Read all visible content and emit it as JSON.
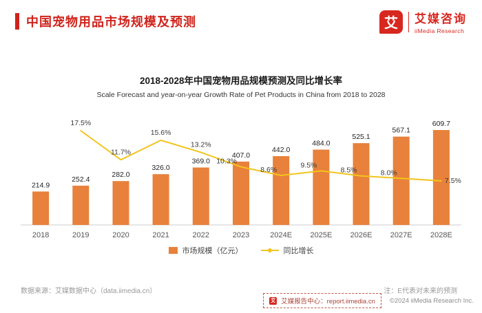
{
  "header": {
    "title": "中国宠物用品市场规模及预测",
    "logo": {
      "glyph": "艾",
      "name_cn": "艾媒咨询",
      "name_en": "iiMedia Research"
    }
  },
  "chart": {
    "title": "2018-2028年中国宠物用品规模预测及同比增长率",
    "subtitle": "Scale Forecast and year-on-year Growth Rate of Pet Products in China from 2018 to 2028"
  },
  "chart_data": {
    "type": "bar+line",
    "categories": [
      "2018",
      "2019",
      "2020",
      "2021",
      "2022",
      "2023",
      "2024E",
      "2025E",
      "2026E",
      "2027E",
      "2028E"
    ],
    "series": [
      {
        "name": "市场规模（亿元）",
        "type": "bar",
        "color": "#E8813B",
        "values": [
          214.9,
          252.4,
          282.0,
          326.0,
          369.0,
          407.0,
          442.0,
          484.0,
          525.1,
          567.1,
          609.7
        ]
      },
      {
        "name": "同比增长",
        "type": "line",
        "color": "#F2C41D",
        "values": [
          null,
          17.5,
          11.7,
          15.6,
          13.2,
          10.3,
          8.6,
          9.5,
          8.5,
          8.0,
          7.5
        ],
        "labels": [
          "",
          "17.5%",
          "11.7%",
          "15.6%",
          "13.2%",
          "10.3%",
          "8.6%",
          "9.5%",
          "8.5%",
          "8.0%",
          "7.5%"
        ]
      }
    ],
    "y_axis": "hidden",
    "grid": "off",
    "legend_position": "bottom",
    "value_labels": "on"
  },
  "colors": {
    "accent_red": "#CF231C",
    "bar_orange": "#E8813B",
    "line_gold": "#F2C41D"
  },
  "footer": {
    "source": "数据来源：艾媒数据中心（data.iimedia.cn）",
    "note": "注：E代表对未来的预测",
    "report_center": "艾媒报告中心：report.iimedia.cn",
    "copyright": "©2024  iiMedia Research Inc."
  }
}
